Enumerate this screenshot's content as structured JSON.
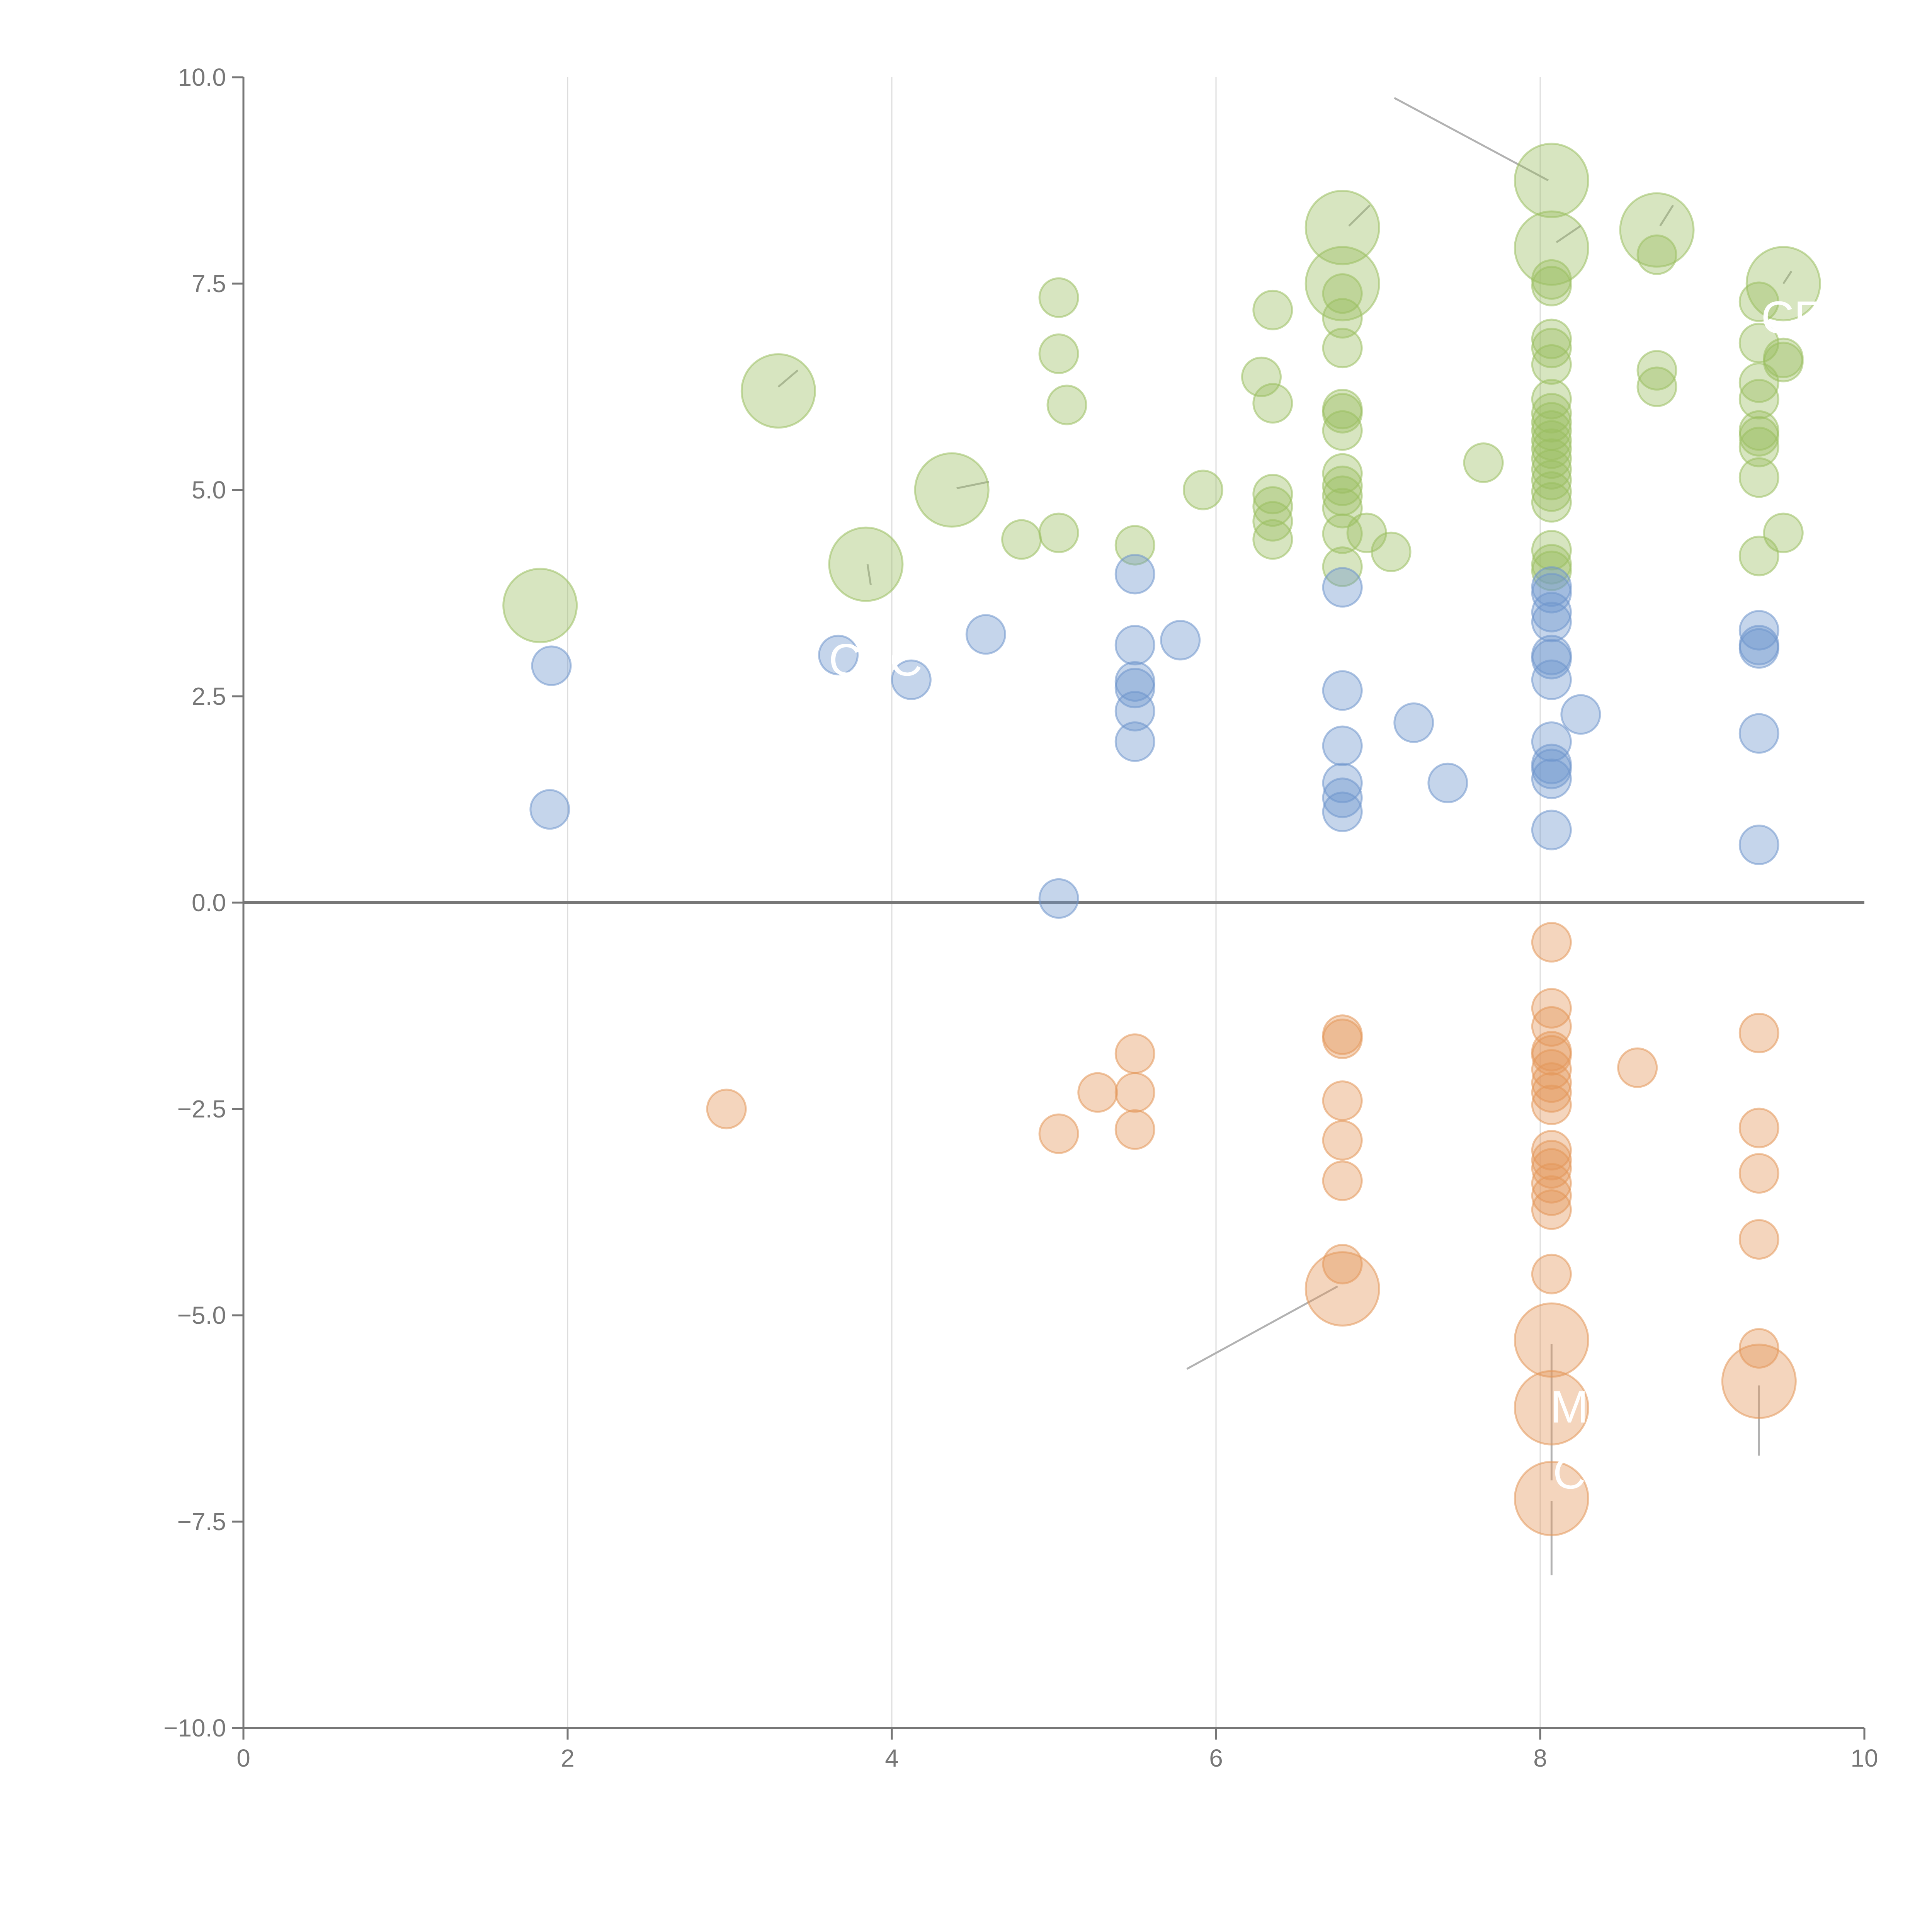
{
  "chart_data": {
    "type": "scatter",
    "title": "",
    "xlabel": "",
    "ylabel": "",
    "xlim": [
      0,
      10
    ],
    "ylim": [
      -10,
      10
    ],
    "grid": "vertical",
    "zero_line": true,
    "x_ticks": [
      "0",
      "2",
      "4",
      "6",
      "8",
      "10"
    ],
    "y_ticks": [
      "10.0",
      "7.5",
      "5.0",
      "2.5",
      "0.0",
      "−2.5",
      "−5.0",
      "−7.5",
      "−10.0"
    ],
    "x_tick_values": [
      0,
      2,
      4,
      6,
      8,
      10
    ],
    "y_tick_values": [
      10,
      7.5,
      5,
      2.5,
      0,
      -2.5,
      -5,
      -7.5,
      -10
    ],
    "colors": {
      "green": "#9ABF61",
      "blue": "#6F96CC",
      "orange": "#E3975A",
      "axis": "#777777",
      "grid": "#DDDDDD",
      "zero": "#777777",
      "leader": "#AAAAAA"
    },
    "series": [
      {
        "name": "green",
        "color": "#9ABF61",
        "points": [
          [
            1.83,
            3.6,
            3
          ],
          [
            3.3,
            6.2,
            3
          ],
          [
            3.84,
            4.1,
            3
          ],
          [
            4.37,
            5.0,
            3
          ],
          [
            4.8,
            4.4,
            1
          ],
          [
            5.03,
            7.33,
            1
          ],
          [
            5.03,
            6.65,
            1
          ],
          [
            5.03,
            4.48,
            1
          ],
          [
            5.08,
            6.03,
            1
          ],
          [
            5.5,
            4.33,
            1
          ],
          [
            5.92,
            5.0,
            1
          ],
          [
            6.28,
            6.37,
            1
          ],
          [
            6.35,
            7.18,
            1
          ],
          [
            6.35,
            6.05,
            1
          ],
          [
            6.35,
            4.95,
            1
          ],
          [
            6.35,
            4.8,
            1
          ],
          [
            6.35,
            4.62,
            1
          ],
          [
            6.35,
            4.4,
            1
          ],
          [
            6.78,
            8.18,
            3
          ],
          [
            6.78,
            7.5,
            3
          ],
          [
            6.78,
            7.38,
            1
          ],
          [
            6.78,
            7.08,
            1
          ],
          [
            6.78,
            6.72,
            1
          ],
          [
            6.78,
            5.98,
            1
          ],
          [
            6.78,
            5.93,
            1
          ],
          [
            6.78,
            5.72,
            1
          ],
          [
            6.78,
            5.2,
            1
          ],
          [
            6.78,
            5.05,
            1
          ],
          [
            6.78,
            4.93,
            1
          ],
          [
            6.78,
            4.78,
            1
          ],
          [
            6.78,
            4.47,
            1
          ],
          [
            6.78,
            4.07,
            1
          ],
          [
            6.93,
            4.48,
            1
          ],
          [
            7.08,
            4.25,
            1
          ],
          [
            7.65,
            5.33,
            1
          ],
          [
            8.07,
            8.75,
            3
          ],
          [
            8.07,
            7.93,
            3
          ],
          [
            8.07,
            7.55,
            1
          ],
          [
            8.07,
            7.47,
            1
          ],
          [
            8.07,
            6.83,
            1
          ],
          [
            8.07,
            6.72,
            1
          ],
          [
            8.07,
            6.52,
            1
          ],
          [
            8.07,
            6.1,
            1
          ],
          [
            8.07,
            5.93,
            1
          ],
          [
            8.07,
            5.82,
            1
          ],
          [
            8.07,
            5.72,
            1
          ],
          [
            8.07,
            5.6,
            1
          ],
          [
            8.07,
            5.5,
            1
          ],
          [
            8.07,
            5.38,
            1
          ],
          [
            8.07,
            5.25,
            1
          ],
          [
            8.07,
            5.12,
            1
          ],
          [
            8.07,
            4.98,
            1
          ],
          [
            8.07,
            4.85,
            1
          ],
          [
            8.07,
            4.27,
            1
          ],
          [
            8.07,
            4.1,
            1
          ],
          [
            8.07,
            4.02,
            1
          ],
          [
            8.72,
            8.15,
            3
          ],
          [
            8.72,
            7.85,
            1
          ],
          [
            8.72,
            6.45,
            1
          ],
          [
            8.72,
            6.25,
            1
          ],
          [
            9.35,
            7.28,
            1
          ],
          [
            9.35,
            6.78,
            1
          ],
          [
            9.35,
            6.3,
            1
          ],
          [
            9.35,
            6.1,
            1
          ],
          [
            9.35,
            5.72,
            1
          ],
          [
            9.35,
            5.65,
            1
          ],
          [
            9.35,
            5.52,
            1
          ],
          [
            9.35,
            5.15,
            1
          ],
          [
            9.35,
            4.2,
            1
          ],
          [
            9.5,
            7.5,
            3
          ],
          [
            9.5,
            6.6,
            1
          ],
          [
            9.5,
            6.55,
            1
          ],
          [
            9.5,
            4.48,
            1
          ]
        ]
      },
      {
        "name": "blue",
        "color": "#6F96CC",
        "points": [
          [
            1.9,
            2.87,
            1
          ],
          [
            1.89,
            1.13,
            1
          ],
          [
            3.67,
            3.0,
            1
          ],
          [
            4.12,
            2.7,
            1
          ],
          [
            4.58,
            3.25,
            1
          ],
          [
            5.03,
            0.05,
            1
          ],
          [
            5.5,
            3.98,
            1
          ],
          [
            5.5,
            3.12,
            1
          ],
          [
            5.5,
            2.68,
            1
          ],
          [
            5.5,
            2.6,
            1
          ],
          [
            5.5,
            2.32,
            1
          ],
          [
            5.5,
            1.95,
            1
          ],
          [
            5.78,
            3.18,
            1
          ],
          [
            6.78,
            3.82,
            1
          ],
          [
            6.78,
            2.57,
            1
          ],
          [
            6.78,
            1.9,
            1
          ],
          [
            6.78,
            1.45,
            1
          ],
          [
            6.78,
            1.27,
            1
          ],
          [
            6.78,
            1.1,
            1
          ],
          [
            7.22,
            2.18,
            1
          ],
          [
            7.43,
            1.45,
            1
          ],
          [
            8.07,
            3.83,
            1
          ],
          [
            8.07,
            3.75,
            1
          ],
          [
            8.07,
            3.52,
            1
          ],
          [
            8.07,
            3.4,
            1
          ],
          [
            8.07,
            3.0,
            1
          ],
          [
            8.07,
            2.95,
            1
          ],
          [
            8.07,
            2.7,
            1
          ],
          [
            8.07,
            1.95,
            1
          ],
          [
            8.07,
            1.68,
            1
          ],
          [
            8.07,
            1.62,
            1
          ],
          [
            8.07,
            1.5,
            1
          ],
          [
            8.07,
            0.88,
            1
          ],
          [
            8.25,
            2.28,
            1
          ],
          [
            9.35,
            3.3,
            1
          ],
          [
            9.35,
            3.12,
            1
          ],
          [
            9.35,
            3.08,
            1
          ],
          [
            9.35,
            2.05,
            1
          ],
          [
            9.35,
            0.7,
            1
          ]
        ]
      },
      {
        "name": "orange",
        "color": "#E3975A",
        "points": [
          [
            2.98,
            -2.5,
            1
          ],
          [
            5.03,
            -2.8,
            1
          ],
          [
            5.27,
            -2.3,
            1
          ],
          [
            5.5,
            -1.83,
            1
          ],
          [
            5.5,
            -2.3,
            1
          ],
          [
            5.5,
            -2.75,
            1
          ],
          [
            6.78,
            -1.6,
            1
          ],
          [
            6.78,
            -1.65,
            1
          ],
          [
            6.78,
            -2.4,
            1
          ],
          [
            6.78,
            -2.88,
            1
          ],
          [
            6.78,
            -3.37,
            1
          ],
          [
            6.78,
            -4.38,
            1
          ],
          [
            6.78,
            -4.68,
            3
          ],
          [
            8.07,
            -0.48,
            1
          ],
          [
            8.07,
            -1.28,
            1
          ],
          [
            8.07,
            -1.5,
            1
          ],
          [
            8.07,
            -1.8,
            1
          ],
          [
            8.07,
            -1.85,
            1
          ],
          [
            8.07,
            -2.02,
            1
          ],
          [
            8.07,
            -2.18,
            1
          ],
          [
            8.07,
            -2.3,
            1
          ],
          [
            8.07,
            -2.45,
            1
          ],
          [
            8.07,
            -3.0,
            1
          ],
          [
            8.07,
            -3.12,
            1
          ],
          [
            8.07,
            -3.22,
            1
          ],
          [
            8.07,
            -3.4,
            1
          ],
          [
            8.07,
            -3.55,
            1
          ],
          [
            8.07,
            -3.72,
            1
          ],
          [
            8.07,
            -4.5,
            1
          ],
          [
            8.07,
            -5.3,
            3
          ],
          [
            8.07,
            -6.12,
            3
          ],
          [
            8.07,
            -7.22,
            3
          ],
          [
            8.6,
            -2.0,
            1
          ],
          [
            9.35,
            -1.58,
            1
          ],
          [
            9.35,
            -2.73,
            1
          ],
          [
            9.35,
            -3.28,
            1
          ],
          [
            9.35,
            -4.08,
            1
          ],
          [
            9.35,
            -5.4,
            1
          ],
          [
            9.35,
            -5.8,
            3
          ]
        ]
      }
    ],
    "label_fragments": [
      {
        "text": "CF",
        "x": 9.55,
        "y": 6.9,
        "anchor": "middle"
      },
      {
        "text": "CFC",
        "x": 3.9,
        "y": 2.75,
        "anchor": "middle"
      },
      {
        "text": "M",
        "x": 8.18,
        "y": -6.3,
        "anchor": "middle"
      },
      {
        "text": "C",
        "x": 8.18,
        "y": -7.1,
        "anchor": "middle"
      }
    ],
    "leader_lines": [
      {
        "series": "green",
        "x1": 7.1,
        "y1": 9.75,
        "x2": 8.05,
        "y2": 8.75
      },
      {
        "series": "green",
        "x1": 3.3,
        "y1": 6.25,
        "x2": 3.42,
        "y2": 6.45
      },
      {
        "series": "green",
        "x1": 3.87,
        "y1": 3.85,
        "x2": 3.85,
        "y2": 4.1
      },
      {
        "series": "green",
        "x1": 4.4,
        "y1": 5.02,
        "x2": 4.6,
        "y2": 5.1
      },
      {
        "series": "green",
        "x1": 6.82,
        "y1": 8.2,
        "x2": 6.95,
        "y2": 8.45
      },
      {
        "series": "green",
        "x1": 8.1,
        "y1": 8.0,
        "x2": 8.25,
        "y2": 8.2
      },
      {
        "series": "green",
        "x1": 8.74,
        "y1": 8.2,
        "x2": 8.82,
        "y2": 8.45
      },
      {
        "series": "green",
        "x1": 9.5,
        "y1": 7.5,
        "x2": 9.55,
        "y2": 7.65
      },
      {
        "series": "orange",
        "x1": 5.82,
        "y1": -5.65,
        "x2": 6.75,
        "y2": -4.65
      },
      {
        "series": "orange",
        "x1": 8.07,
        "y1": -5.35,
        "x2": 8.07,
        "y2": -7.0
      },
      {
        "series": "orange",
        "x1": 8.07,
        "y1": -7.25,
        "x2": 8.07,
        "y2": -8.15
      },
      {
        "series": "orange",
        "x1": 9.35,
        "y1": -5.85,
        "x2": 9.35,
        "y2": -6.7
      }
    ]
  }
}
